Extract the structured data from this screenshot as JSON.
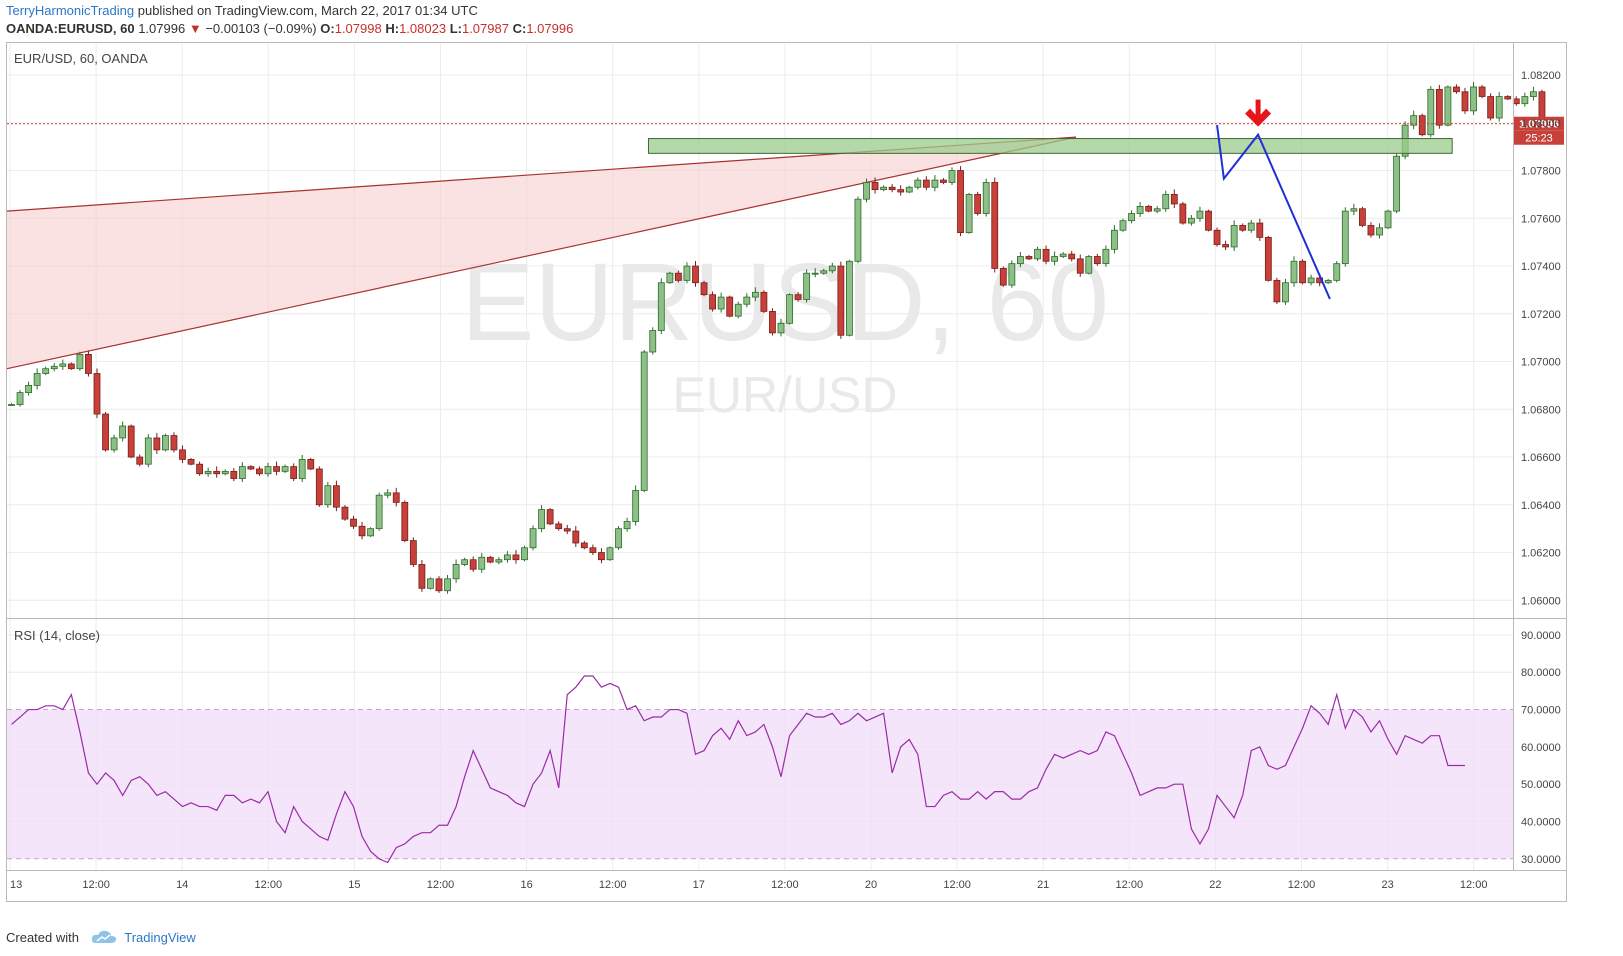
{
  "header": {
    "author": "TerryHarmonicTrading",
    "published_text": "published on TradingView.com, March 22, 2017 01:34 UTC",
    "symbol_line": "OANDA:EURUSD, 60",
    "last_price": "1.07996",
    "change_arrow": "▼",
    "change": "−0.00103 (−0.09%)",
    "o_label": "O:",
    "o_value": "1.07998",
    "h_label": "H:",
    "h_value": "1.08023",
    "l_label": "L:",
    "l_value": "1.07987",
    "c_label": "C:",
    "c_value": "1.07996"
  },
  "chart_data": {
    "type": "candlestick",
    "pane_label": "EUR/USD, 60, OANDA",
    "watermark": "EURUSD, 60",
    "watermark_sub": "EUR/USD",
    "price_ticks": [
      "1.08200",
      "1.08000",
      "1.07800",
      "1.07600",
      "1.07400",
      "1.07200",
      "1.07000",
      "1.06800",
      "1.06600",
      "1.06400",
      "1.06200",
      "1.06000"
    ],
    "price_tick_values": [
      1.082,
      1.08,
      1.078,
      1.076,
      1.074,
      1.072,
      1.07,
      1.068,
      1.066,
      1.064,
      1.062,
      1.06
    ],
    "ylim": [
      1.0593,
      1.0833
    ],
    "last_price_label": "1.07996",
    "last_price_value": 1.07996,
    "countdown_label": "25:23",
    "time_ticks": [
      "13",
      "12:00",
      "14",
      "12:00",
      "15",
      "12:00",
      "16",
      "12:00",
      "17",
      "12:00",
      "20",
      "12:00",
      "21",
      "12:00",
      "22",
      "12:00",
      "23",
      "12:00"
    ],
    "bars_total": 178,
    "first_open": 1.0682,
    "closes": [
      1.0682,
      1.0687,
      1.069,
      1.0695,
      1.0697,
      1.0698,
      1.0699,
      1.0697,
      1.0703,
      1.0695,
      1.0678,
      1.0663,
      1.0668,
      1.0673,
      1.066,
      1.0657,
      1.0668,
      1.0663,
      1.0669,
      1.0663,
      1.0659,
      1.0657,
      1.0653,
      1.0654,
      1.0653,
      1.0654,
      1.0651,
      1.0656,
      1.0655,
      1.0653,
      1.0656,
      1.0654,
      1.0656,
      1.0651,
      1.0659,
      1.0655,
      1.064,
      1.0648,
      1.0639,
      1.0634,
      1.0631,
      1.0627,
      1.063,
      1.0644,
      1.0645,
      1.0641,
      1.0625,
      1.0615,
      1.0605,
      1.0609,
      1.0604,
      1.0609,
      1.0615,
      1.0617,
      1.0613,
      1.0618,
      1.0616,
      1.0617,
      1.0619,
      1.0617,
      1.0622,
      1.063,
      1.0638,
      1.0632,
      1.063,
      1.0629,
      1.0624,
      1.0622,
      1.062,
      1.0617,
      1.0622,
      1.063,
      1.0633,
      1.0646,
      1.0704,
      1.0713,
      1.0733,
      1.0737,
      1.0734,
      1.074,
      1.0733,
      1.0728,
      1.0722,
      1.0727,
      1.0719,
      1.0724,
      1.0727,
      1.0729,
      1.0721,
      1.0712,
      1.0716,
      1.0728,
      1.0726,
      1.0737,
      1.0737,
      1.0738,
      1.074,
      1.0711,
      1.0742,
      1.0768,
      1.0775,
      1.0772,
      1.0773,
      1.0772,
      1.0771,
      1.0773,
      1.0776,
      1.0773,
      1.0776,
      1.0775,
      1.078,
      1.0754,
      1.077,
      1.0762,
      1.0775,
      1.0739,
      1.0732,
      1.0741,
      1.0744,
      1.0743,
      1.0747,
      1.0742,
      1.0744,
      1.0745,
      1.0743,
      1.0737,
      1.0744,
      1.0741,
      1.0747,
      1.0755,
      1.0759,
      1.0762,
      1.0765,
      1.0763,
      1.0764,
      1.077,
      1.0766,
      1.0758,
      1.076,
      1.0763,
      1.0755,
      1.0749,
      1.0748,
      1.0757,
      1.0755,
      1.0758,
      1.0752,
      1.0734,
      1.0725,
      1.0733,
      1.0742,
      1.0733,
      1.0735,
      1.0733,
      1.0734,
      1.0741,
      1.0763,
      1.0764,
      1.0757,
      1.0753,
      1.0756,
      1.0763,
      1.0786,
      1.0799,
      1.0803,
      1.0795,
      1.0814,
      1.0799,
      1.0815,
      1.0813,
      1.0805,
      1.0815,
      1.0811,
      1.0802,
      1.0811,
      1.081,
      1.0808,
      1.0811,
      1.0813,
      1.08,
      1.08
    ],
    "wedge_upper": {
      "from": [
        0,
        1.0763
      ],
      "to": [
        124.5,
        1.0794
      ]
    },
    "wedge_lower": {
      "from": [
        0,
        1.0697
      ],
      "to": [
        124.5,
        1.0794
      ]
    },
    "resistance_zone": {
      "x_from": 74.5,
      "x_to": 168.5,
      "price_top": 1.07934,
      "price_bottom": 1.07872
    },
    "projection_path": [
      [
        141.0,
        1.0799
      ],
      [
        141.8,
        1.07766
      ],
      [
        145.8,
        1.0795
      ],
      [
        154.2,
        1.07262
      ]
    ],
    "sell_arrow": {
      "x": 145.8,
      "price": 1.0798
    },
    "rsi": {
      "label": "RSI (14, close)",
      "ticks": [
        "90.0000",
        "80.0000",
        "70.0000",
        "60.0000",
        "50.0000",
        "40.0000",
        "30.0000"
      ],
      "tick_values": [
        90,
        80,
        70,
        60,
        50,
        40,
        30
      ],
      "ylim": [
        27,
        94
      ],
      "overbought": 70,
      "oversold": 30,
      "values": [
        66,
        68,
        70,
        70,
        71,
        71,
        70,
        74,
        64,
        53,
        50,
        53,
        51,
        47,
        51,
        52,
        50,
        47,
        48,
        46,
        44,
        45,
        44,
        44,
        43,
        47,
        47,
        45,
        46,
        45,
        48,
        40,
        37,
        44,
        40,
        38,
        36,
        35,
        42,
        48,
        44,
        36,
        32,
        30,
        29,
        33,
        34,
        36,
        37,
        37,
        39,
        39,
        44,
        52,
        59,
        54,
        49,
        48,
        47,
        45,
        44,
        50,
        53,
        59,
        49,
        74,
        76,
        79,
        79,
        76,
        77,
        76,
        70,
        71,
        67,
        68,
        68,
        70,
        70,
        69,
        58,
        59,
        63,
        65,
        62,
        67,
        63,
        64,
        66,
        60,
        52,
        63,
        66,
        69,
        68,
        68,
        69,
        66,
        67,
        69,
        67,
        68,
        69,
        53,
        60,
        62,
        58,
        44,
        44,
        47,
        48,
        46,
        46,
        48,
        46,
        48,
        48,
        46,
        46,
        48,
        49,
        54,
        58,
        57,
        58,
        59,
        58,
        59,
        64,
        63,
        58,
        53,
        47,
        48,
        49,
        49,
        50,
        50,
        38,
        34,
        38,
        47,
        44,
        41,
        47,
        59,
        60,
        55,
        54,
        55,
        60,
        65,
        71,
        69,
        66,
        74,
        65,
        70,
        68,
        64,
        67,
        62,
        58,
        63,
        62,
        61,
        63,
        63,
        55,
        55,
        55
      ]
    }
  },
  "footer": {
    "created_with": "Created with",
    "brand": "TradingView"
  },
  "colors": {
    "bull_fill": "#8cc087",
    "bull_border": "#2e6b2a",
    "bear_fill": "#c7403a",
    "bear_border": "#7a1e1a",
    "grid": "#ececec",
    "wedge_fill": "#f6cfcf",
    "wedge_line": "#a8322d",
    "zone_fill": "#9ccb8e",
    "zone_border": "#3c6a30",
    "projection": "#1f2fd6",
    "sell_arrow": "#e8141b",
    "rsi_line": "#9b2ba8",
    "rsi_band": "#f2dcf8",
    "price_tag": "#c7403a"
  }
}
